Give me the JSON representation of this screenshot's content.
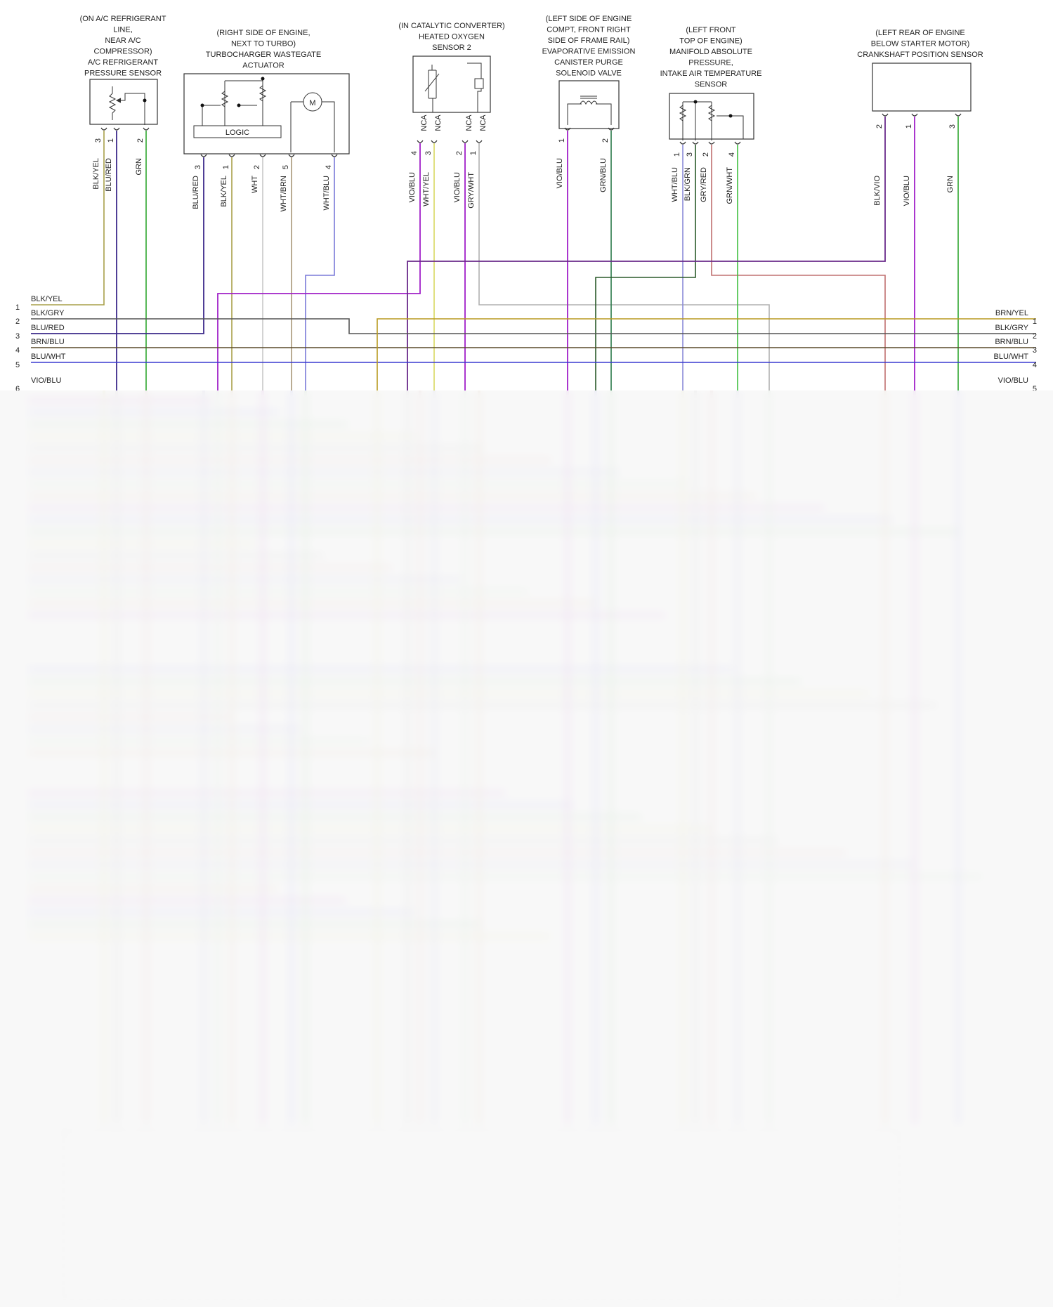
{
  "components": [
    {
      "id": "ac",
      "title": [
        "(ON A/C REFRIGERANT",
        "LINE,",
        "NEAR A/C",
        "COMPRESSOR)",
        "A/C REFRIGERANT",
        "PRESSURE SENSOR"
      ],
      "pins": [
        {
          "n": "3",
          "wire": "BLK/YEL"
        },
        {
          "n": "1",
          "wire": "BLU/RED"
        },
        {
          "n": "2",
          "wire": "GRN"
        }
      ]
    },
    {
      "id": "turbo",
      "title": [
        "(RIGHT SIDE OF ENGINE,",
        "NEXT TO TURBO)",
        "TURBOCHARGER WASTEGATE",
        "ACTUATOR"
      ],
      "logic": "LOGIC",
      "motor": "M",
      "pins": [
        {
          "n": "3",
          "wire": "BLU/RED"
        },
        {
          "n": "1",
          "wire": "BLK/YEL"
        },
        {
          "n": "2",
          "wire": "WHT"
        },
        {
          "n": "5",
          "wire": "WHT/BRN"
        },
        {
          "n": "4",
          "wire": "WHT/BLU"
        }
      ]
    },
    {
      "id": "o2",
      "title": [
        "(IN CATALYTIC CONVERTER)",
        "HEATED OXYGEN",
        "SENSOR 2"
      ],
      "pins": [
        {
          "n": "4",
          "wire": "VIO/BLU",
          "nca": "NCA"
        },
        {
          "n": "3",
          "wire": "WHT/YEL",
          "nca": "NCA"
        },
        {
          "n": "2",
          "wire": "VIO/BLU",
          "nca": "NCA"
        },
        {
          "n": "1",
          "wire": "GRY/WHT",
          "nca": "NCA"
        }
      ]
    },
    {
      "id": "evap",
      "title": [
        "(LEFT SIDE OF ENGINE",
        "COMPT, FRONT RIGHT",
        "SIDE OF FRAME RAIL)",
        "EVAPORATIVE EMISSION",
        "CANISTER PURGE",
        "SOLENOID VALVE"
      ],
      "pins": [
        {
          "n": "1",
          "wire": "VIO/BLU"
        },
        {
          "n": "2",
          "wire": "GRN/BLU"
        }
      ]
    },
    {
      "id": "map",
      "title": [
        "(LEFT FRONT",
        "TOP OF ENGINE)",
        "MANIFOLD ABSOLUTE",
        "PRESSURE,",
        "INTAKE AIR TEMPERATURE",
        "SENSOR"
      ],
      "pins": [
        {
          "n": "1",
          "wire": "WHT/BLU"
        },
        {
          "n": "3",
          "wire": "BLK/GRN"
        },
        {
          "n": "2",
          "wire": "GRY/RED"
        },
        {
          "n": "4",
          "wire": "GRN/WHT"
        }
      ]
    },
    {
      "id": "crank",
      "title": [
        "(LEFT REAR OF ENGINE",
        "BELOW STARTER MOTOR)",
        "CRANKSHAFT POSITION SENSOR"
      ],
      "pins": [
        {
          "n": "2",
          "wire": "BLK/VIO"
        },
        {
          "n": "1",
          "wire": "VIO/BLU"
        },
        {
          "n": "3",
          "wire": "GRN"
        }
      ]
    }
  ],
  "left_bus": [
    {
      "n": "1",
      "label": "BLK/YEL"
    },
    {
      "n": "2",
      "label": "BLK/GRY"
    },
    {
      "n": "3",
      "label": "BLU/RED"
    },
    {
      "n": "4",
      "label": "BRN/BLU"
    },
    {
      "n": "5",
      "label": "BLU/WHT"
    },
    {
      "n": "6",
      "label": "VIO/BLU"
    }
  ],
  "right_bus": [
    {
      "n": "1",
      "label": "BRN/YEL"
    },
    {
      "n": "2",
      "label": "BLK/GRY"
    },
    {
      "n": "3",
      "label": "BRN/BLU"
    },
    {
      "n": "4",
      "label": "BLU/WHT"
    },
    {
      "n": "5",
      "label": "VIO/BLU"
    }
  ],
  "colors": {
    "BLK/YEL": "#a8a04a",
    "BLU/RED": "#3c2a8a",
    "GRN": "#2fa62f",
    "BLK/GRY": "#555555",
    "BRN/BLU": "#5a4a2a",
    "BLU/WHT": "#3a3ad0",
    "VIO/BLU": "#a020c8",
    "WHT": "#c8c8c8",
    "WHT/BRN": "#a89878",
    "WHT/BLU": "#7a7ad8",
    "WHT/YEL": "#d8d860",
    "GRY/WHT": "#b0b0b0",
    "GRN/BLU": "#2a7a4a",
    "WHT/BLU2": "#8a8ad8",
    "BLK/GRN": "#2a5a2a",
    "GRY/RED": "#c07070",
    "GRN/WHT": "#40c040",
    "BLK/VIO": "#6a2a8a",
    "BRN/YEL": "#b89a20"
  }
}
